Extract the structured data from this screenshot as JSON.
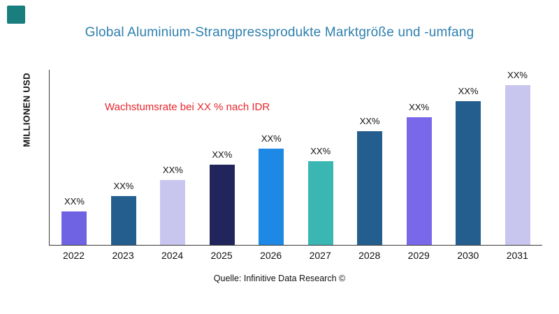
{
  "logo": {
    "name": "brand-logo",
    "color": "#1b7e7e"
  },
  "header": {
    "title": "Global Aluminium-Strangpressprodukte Marktgröße und -umfang"
  },
  "annotation": {
    "growth_rate": "Wachstumsrate bei XX % nach IDR",
    "color": "#e8262d"
  },
  "source": {
    "text": "Quelle: Infinitive Data Research ©"
  },
  "chart_data": {
    "type": "bar",
    "title": "Global Aluminium-Strangpressprodukte Marktgröße und -umfang",
    "xlabel": "",
    "ylabel": "MILLIONEN USD",
    "categories": [
      "2022",
      "2023",
      "2024",
      "2025",
      "2026",
      "2027",
      "2028",
      "2029",
      "2030",
      "2031"
    ],
    "values": [
      19,
      28,
      37,
      46,
      55,
      48,
      65,
      73,
      82,
      92
    ],
    "value_unit": "relative-percent-of-plot-height",
    "bar_labels": [
      "XX%",
      "XX%",
      "XX%",
      "XX%",
      "XX%",
      "XX%",
      "XX%",
      "XX%",
      "XX%",
      "XX%"
    ],
    "bar_colors": [
      "#6f63e4",
      "#235e8e",
      "#c8c6ef",
      "#21255c",
      "#1e88e5",
      "#3ab7b2",
      "#235e8e",
      "#7a68ea",
      "#235e8e",
      "#c8c6ef"
    ],
    "ylim": [
      0,
      100
    ],
    "grid": false,
    "legend": "none",
    "annotation": "Wachstumsrate bei XX % nach IDR"
  }
}
